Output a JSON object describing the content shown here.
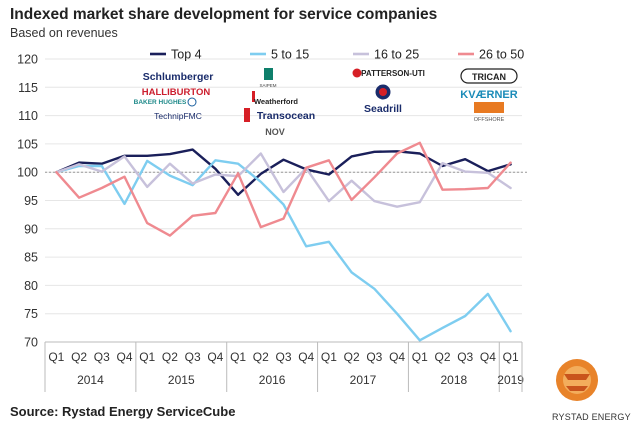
{
  "header": {
    "title": "Indexed market share development for service companies",
    "subtitle": "Based on revenues"
  },
  "footer": {
    "source": "Source: Rystad Energy ServiceCube",
    "brand": "RYSTAD ENERGY"
  },
  "logos": {
    "top4": [
      "Schlumberger",
      "HALLIBURTON",
      "BAKER HUGHES",
      "TechnipFMC"
    ],
    "5to15": [
      "SAIPEM",
      "Weatherford",
      "Transocean",
      "NOV"
    ],
    "16to25": [
      "PATTERSON-UTI",
      "Seadrill"
    ],
    "26to50": [
      "TRICAN",
      "KVÆRNER",
      "OFFSHORE"
    ]
  },
  "chart_data": {
    "type": "line",
    "title": "Indexed market share development for service companies",
    "subtitle": "Based on revenues",
    "categories": [
      "Q1",
      "Q2",
      "Q3",
      "Q4",
      "Q1",
      "Q2",
      "Q3",
      "Q4",
      "Q1",
      "Q2",
      "Q3",
      "Q4",
      "Q1",
      "Q2",
      "Q3",
      "Q4",
      "Q1",
      "Q2",
      "Q3",
      "Q4",
      "Q1"
    ],
    "year_groups": [
      {
        "label": "2014",
        "count": 4
      },
      {
        "label": "2015",
        "count": 4
      },
      {
        "label": "2016",
        "count": 4
      },
      {
        "label": "2017",
        "count": 4
      },
      {
        "label": "2018",
        "count": 4
      },
      {
        "label": "2019",
        "count": 1
      }
    ],
    "ylim": [
      70,
      120
    ],
    "yticks": [
      70,
      75,
      80,
      85,
      90,
      95,
      100,
      105,
      110,
      115,
      120
    ],
    "reference_line": 100,
    "legend_position": "top",
    "series": [
      {
        "name": "Top 4",
        "color": "#1a1f5a",
        "values": [
          100,
          101.7,
          101.5,
          102.9,
          102.9,
          103.2,
          104.0,
          100.6,
          96.0,
          99.7,
          102.2,
          100.5,
          99.6,
          102.8,
          103.6,
          103.7,
          103.3,
          101.1,
          102.3,
          100.2,
          101.4
        ]
      },
      {
        "name": "5 to 15",
        "color": "#7ecdf0",
        "values": [
          100,
          101.1,
          101.1,
          94.4,
          102.0,
          99.4,
          97.7,
          102.1,
          101.5,
          98.3,
          94.3,
          86.9,
          87.7,
          82.3,
          79.4,
          75.0,
          70.3,
          72.5,
          74.6,
          78.5,
          71.9
        ]
      },
      {
        "name": "16 to 25",
        "color": "#c7c1db",
        "values": [
          100,
          101.4,
          100.1,
          102.8,
          97.4,
          101.5,
          98.0,
          99.6,
          99.3,
          103.3,
          96.5,
          100.7,
          94.9,
          98.5,
          94.9,
          93.9,
          94.7,
          101.6,
          100.1,
          99.9,
          97.2
        ]
      },
      {
        "name": "26 to 50",
        "color": "#ef8a90",
        "values": [
          100,
          95.5,
          97.2,
          99.2,
          91.0,
          88.8,
          92.3,
          92.8,
          99.8,
          90.3,
          91.8,
          100.8,
          102.1,
          95.1,
          99.1,
          103.3,
          105.2,
          96.9,
          97.0,
          97.2,
          101.7
        ]
      }
    ]
  }
}
